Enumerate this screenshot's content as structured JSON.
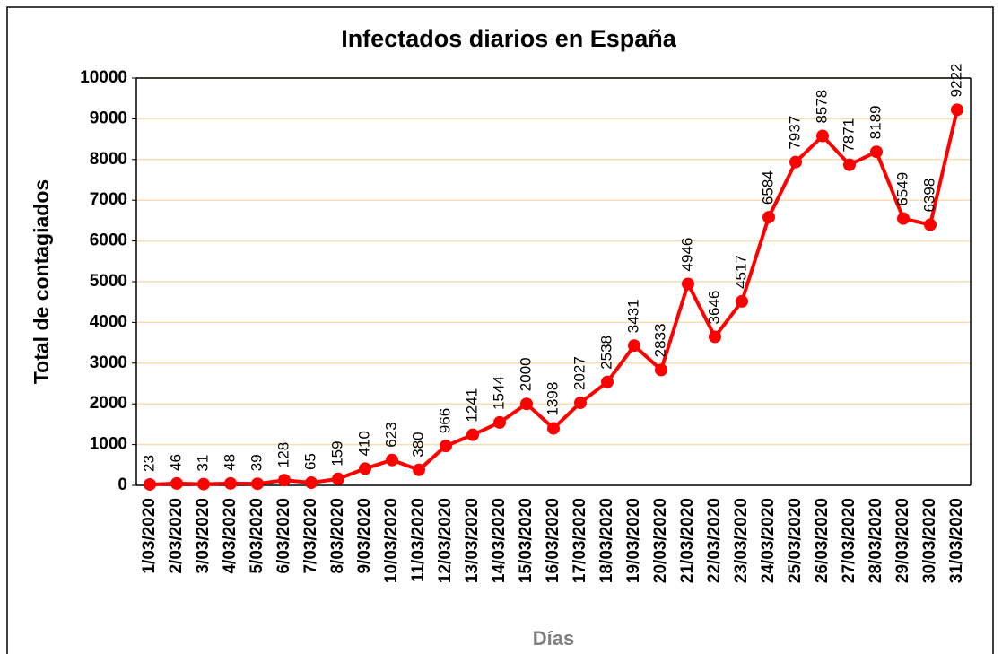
{
  "chart_data": {
    "type": "line",
    "title": "Infectados diarios en España",
    "y_label": "Total de contagiados",
    "x_label": "Días",
    "categories": [
      "1/03/2020",
      "2/03/2020",
      "3/03/2020",
      "4/03/2020",
      "5/03/2020",
      "6/03/2020",
      "7/03/2020",
      "8/03/2020",
      "9/03/2020",
      "10/03/2020",
      "11/03/2020",
      "12/03/2020",
      "13/03/2020",
      "14/03/2020",
      "15/03/2020",
      "16/03/2020",
      "17/03/2020",
      "18/03/2020",
      "19/03/2020",
      "20/03/2020",
      "21/03/2020",
      "22/03/2020",
      "23/03/2020",
      "24/03/2020",
      "25/03/2020",
      "26/03/2020",
      "27/03/2020",
      "28/03/2020",
      "29/03/2020",
      "30/03/2020",
      "31/03/2020"
    ],
    "values": [
      23,
      46,
      31,
      48,
      39,
      128,
      65,
      159,
      410,
      623,
      380,
      966,
      1241,
      1544,
      2000,
      1398,
      2027,
      2538,
      3431,
      2833,
      4946,
      3646,
      4517,
      6584,
      7937,
      8578,
      7871,
      8189,
      6549,
      6398,
      9222
    ],
    "color": "#ff0000",
    "ylim": [
      0,
      10000
    ],
    "yticks": [
      0,
      1000,
      2000,
      3000,
      4000,
      5000,
      6000,
      7000,
      8000,
      9000,
      10000
    ],
    "grid": true,
    "grid_color": "#f7dcb0"
  }
}
